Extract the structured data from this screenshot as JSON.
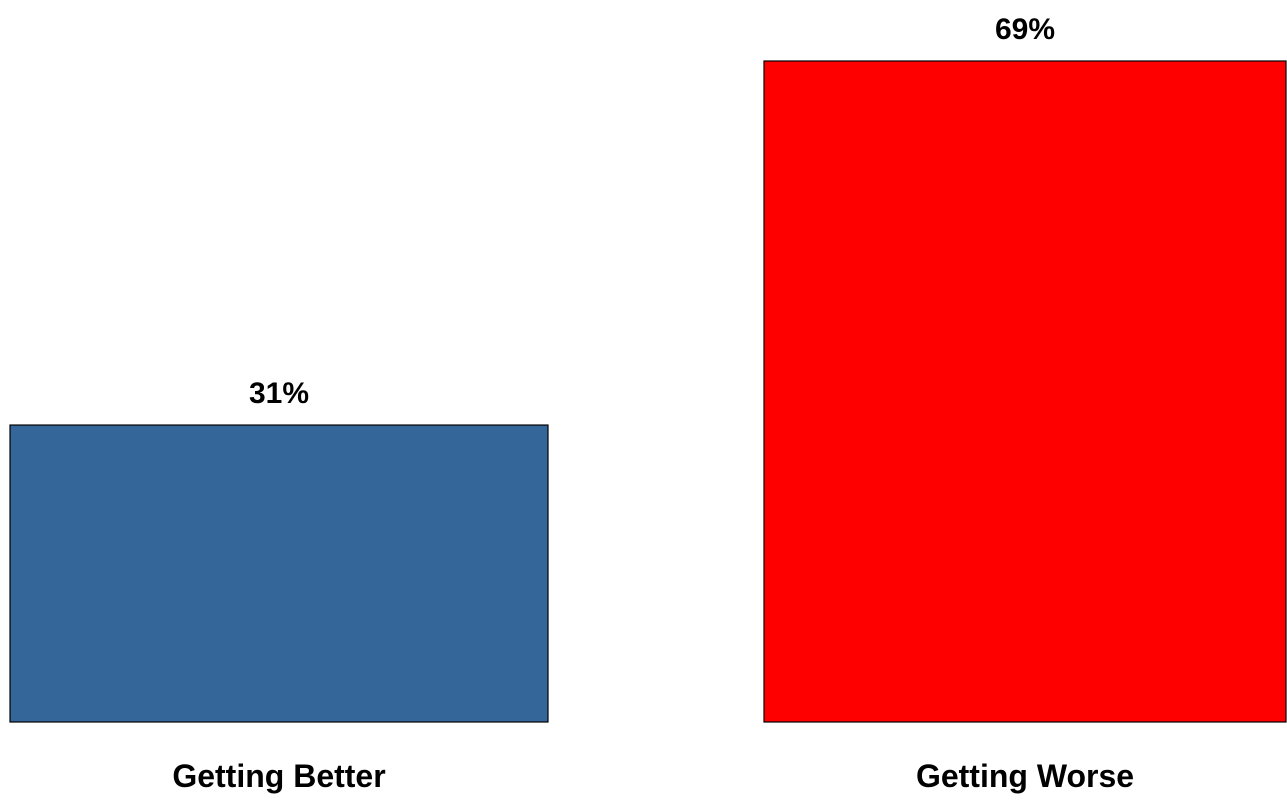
{
  "chart_data": {
    "type": "bar",
    "categories": [
      "Getting Better",
      "Getting Worse"
    ],
    "values": [
      31,
      69
    ],
    "value_labels": [
      "31%",
      "69%"
    ],
    "colors": [
      "#356699",
      "#ff0000"
    ],
    "title": "",
    "xlabel": "",
    "ylabel": "",
    "ylim": [
      0,
      69
    ],
    "grid": false,
    "legend": "none"
  }
}
